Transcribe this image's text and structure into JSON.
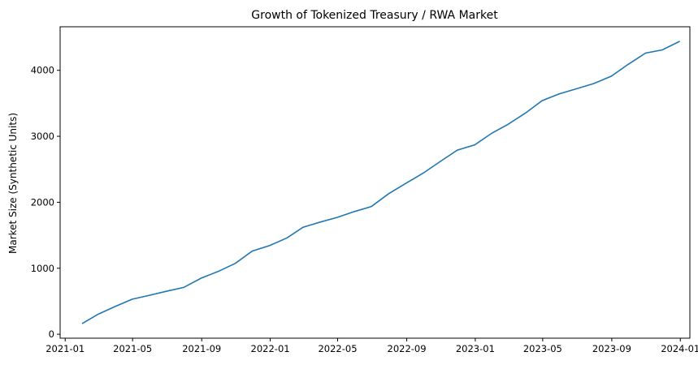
{
  "chart_data": {
    "type": "line",
    "title": "Growth of Tokenized Treasury / RWA Market",
    "xlabel": "",
    "ylabel": "Market Size (Synthetic Units)",
    "grid": false,
    "line_color": "#1f77b4",
    "xlim": [
      "2020-12-23",
      "2024-01-18"
    ],
    "ylim": [
      -60,
      4660
    ],
    "x_ticks": [
      "2021-01",
      "2021-05",
      "2021-09",
      "2022-01",
      "2022-05",
      "2022-09",
      "2023-01",
      "2023-05",
      "2023-09",
      "2024-01"
    ],
    "y_ticks": [
      0,
      1000,
      2000,
      3000,
      4000
    ],
    "series": [
      {
        "x": [
          "2021-01-31",
          "2021-02-28",
          "2021-03-31",
          "2021-04-30",
          "2021-05-31",
          "2021-06-30",
          "2021-07-31",
          "2021-08-31",
          "2021-09-30",
          "2021-10-31",
          "2021-11-30",
          "2021-12-31",
          "2022-01-31",
          "2022-02-28",
          "2022-03-31",
          "2022-04-30",
          "2022-05-31",
          "2022-06-30",
          "2022-07-31",
          "2022-08-31",
          "2022-09-30",
          "2022-10-31",
          "2022-11-30",
          "2022-12-31",
          "2023-01-31",
          "2023-02-28",
          "2023-03-31",
          "2023-04-30",
          "2023-05-31",
          "2023-06-30",
          "2023-07-31",
          "2023-08-31",
          "2023-09-30",
          "2023-10-31",
          "2023-11-30",
          "2023-12-31"
        ],
        "values": [
          160,
          300,
          420,
          530,
          590,
          650,
          710,
          850,
          950,
          1075,
          1260,
          1345,
          1460,
          1620,
          1700,
          1770,
          1860,
          1935,
          2130,
          2290,
          2440,
          2620,
          2790,
          2870,
          3050,
          3180,
          3350,
          3540,
          3645,
          3720,
          3800,
          3910,
          4090,
          4260,
          4310,
          4440
        ]
      }
    ]
  }
}
